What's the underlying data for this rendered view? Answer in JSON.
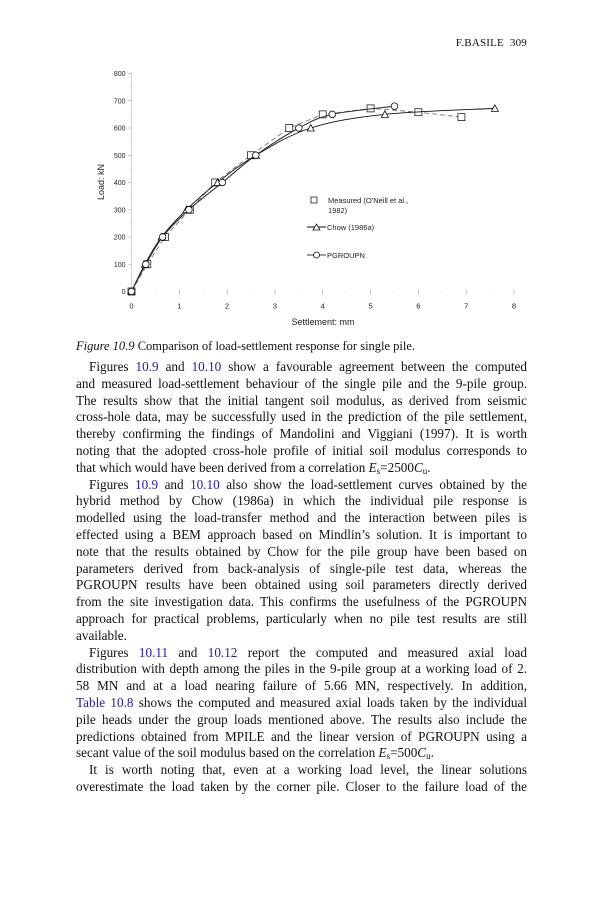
{
  "header": {
    "running_head": "F.BASILE",
    "page_number": "309"
  },
  "chart_data": {
    "type": "line",
    "xlabel": "Settlement: mm",
    "ylabel": "Load: kN",
    "xlim": [
      0,
      8
    ],
    "ylim": [
      0,
      800
    ],
    "xticks": [
      "0",
      "1",
      "2",
      "3",
      "4",
      "5",
      "6",
      "7",
      "8"
    ],
    "yticks": [
      "0",
      "100",
      "200",
      "300",
      "400",
      "500",
      "600",
      "700",
      "800"
    ],
    "grid": false,
    "legend_placement": "center-right",
    "series": [
      {
        "name": "Measured (O'Neill et al., 1982)",
        "marker": "square",
        "line": "dashed",
        "color": "#777777",
        "x": [
          0,
          0.33,
          0.7,
          1.22,
          1.75,
          2.5,
          3.3,
          4.0,
          5.0,
          6.0,
          6.9
        ],
        "y": [
          0,
          100,
          200,
          300,
          400,
          500,
          600,
          650,
          672,
          658,
          640
        ]
      },
      {
        "name": "Chow (1986a)",
        "marker": "triangle",
        "line": "solid",
        "color": "#111111",
        "x": [
          0,
          0.28,
          0.63,
          1.15,
          1.8,
          2.6,
          3.75,
          5.3,
          7.6
        ],
        "y": [
          0,
          100,
          200,
          300,
          400,
          500,
          600,
          650,
          672
        ]
      },
      {
        "name": "PGROUPN",
        "marker": "circle",
        "line": "solid",
        "color": "#333333",
        "x": [
          0,
          0.3,
          0.65,
          1.2,
          1.9,
          2.6,
          3.5,
          4.2,
          5.5
        ],
        "y": [
          0,
          100,
          200,
          300,
          400,
          500,
          600,
          650,
          680
        ]
      }
    ],
    "legend": {
      "measured_line1": "Measured (O'Neill et al.,",
      "measured_line2": "1982)",
      "chow": "Chow (1986a)",
      "pgroupn": "PGROUPN"
    }
  },
  "caption": {
    "label": "Figure 10.9",
    "text": " Comparison of load-settlement response for single pile."
  },
  "body": [
    [
      {
        "t": "Figures "
      },
      {
        "t": "10.9",
        "link": 1
      },
      {
        "t": " and "
      },
      {
        "t": "10.10",
        "link": 1
      },
      {
        "t": " show a favourable agreement between the computed"
      }
    ],
    [
      {
        "t": "and measured load-settlement behaviour of the single pile and the 9-pile group."
      }
    ],
    [
      {
        "t": "The results show that the initial tangent soil modulus, as derived from seismic"
      }
    ],
    [
      {
        "t": "cross-hole data, may be successfully used in the prediction of the pile settlement,"
      }
    ],
    [
      {
        "t": "thereby confirming the findings of Mandolini and Viggiani (1997). It is worth"
      }
    ],
    [
      {
        "t": "noting that the adopted cross-hole profile of initial soil modulus corresponds to"
      }
    ],
    [
      {
        "t": "that which would have been derived from a correlation "
      },
      {
        "t": "E",
        "i": 1
      },
      {
        "t": "s",
        "sub": 1
      },
      {
        "t": "=2500"
      },
      {
        "t": "C",
        "i": 1
      },
      {
        "t": "u",
        "sub": 1
      },
      {
        "t": "."
      }
    ],
    [
      {
        "t": "Figures "
      },
      {
        "t": "10.9",
        "link": 1
      },
      {
        "t": " and "
      },
      {
        "t": "10.10",
        "link": 1
      },
      {
        "t": " also show the load-settlement curves obtained by the"
      }
    ],
    [
      {
        "t": "hybrid method by Chow (1986a) in which the individual pile response is"
      }
    ],
    [
      {
        "t": "modelled using the load-transfer method and the interaction between piles is"
      }
    ],
    [
      {
        "t": "effected using a BEM approach based on Mindlin’s solution. It is important to"
      }
    ],
    [
      {
        "t": "note that the results obtained by Chow for the pile group have been based on"
      }
    ],
    [
      {
        "t": "parameters derived from back-analysis of single-pile test data, whereas the"
      }
    ],
    [
      {
        "t": "PGROUPN results have been obtained using soil parameters directly derived"
      }
    ],
    [
      {
        "t": "from the site investigation data. This confirms the usefulness of the PGROUPN"
      }
    ],
    [
      {
        "t": "approach for practical problems, particularly when no pile test results are still"
      }
    ],
    [
      {
        "t": "available."
      }
    ],
    [
      {
        "t": "Figures "
      },
      {
        "t": "10.11",
        "link": 1
      },
      {
        "t": " and "
      },
      {
        "t": "10.12",
        "link": 1
      },
      {
        "t": " report the computed and measured axial load"
      }
    ],
    [
      {
        "t": "distribution with depth among the piles in the 9-pile group at a working load of 2."
      }
    ],
    [
      {
        "t": "58 MN and at a load nearing failure of 5.66 MN, respectively. In addition,"
      }
    ],
    [
      {
        "t": "Table 10.8",
        "link": 1
      },
      {
        "t": "  shows the computed and measured axial loads taken by the individual"
      }
    ],
    [
      {
        "t": "pile heads under the group loads mentioned above. The results also include the"
      }
    ],
    [
      {
        "t": "predictions obtained from MPILE and the linear version of PGROUPN using a"
      }
    ],
    [
      {
        "t": "secant value of the soil modulus based on the correlation "
      },
      {
        "t": "E",
        "i": 1
      },
      {
        "t": "s",
        "sub": 1
      },
      {
        "t": "=500"
      },
      {
        "t": "C",
        "i": 1
      },
      {
        "t": "u",
        "sub": 1
      },
      {
        "t": "."
      }
    ],
    [
      {
        "t": "It is worth noting that, even at a working load level, the linear solutions"
      }
    ],
    [
      {
        "t": "overestimate the load taken by the corner pile. Closer to the failure load of the"
      }
    ]
  ]
}
